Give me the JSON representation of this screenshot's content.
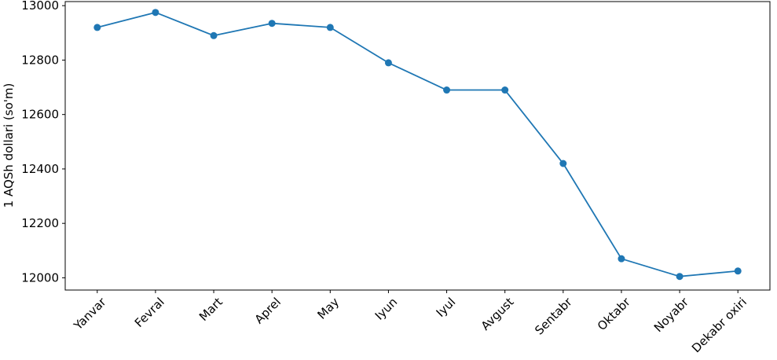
{
  "chart_data": {
    "type": "line",
    "title": "",
    "xlabel": "",
    "ylabel": "1 AQSh dollari (so'm)",
    "categories": [
      "Yanvar",
      "Fevral",
      "Mart",
      "Aprel",
      "May",
      "Iyun",
      "Iyul",
      "Avgust",
      "Sentabr",
      "Oktabr",
      "Noyabr",
      "Dekabr oxiri"
    ],
    "values": [
      12920,
      12975,
      12890,
      12935,
      12920,
      12790,
      12690,
      12690,
      12420,
      12070,
      12005,
      12025
    ],
    "yticks": [
      12000,
      12200,
      12400,
      12600,
      12800,
      13000
    ],
    "ylim": [
      11955,
      13015
    ],
    "x_tick_rotation": 45,
    "grid": false,
    "legend": "none",
    "marker": "circle",
    "line_color": "#1f77b4",
    "axis_color": "#000000",
    "background_color": "#ffffff"
  }
}
